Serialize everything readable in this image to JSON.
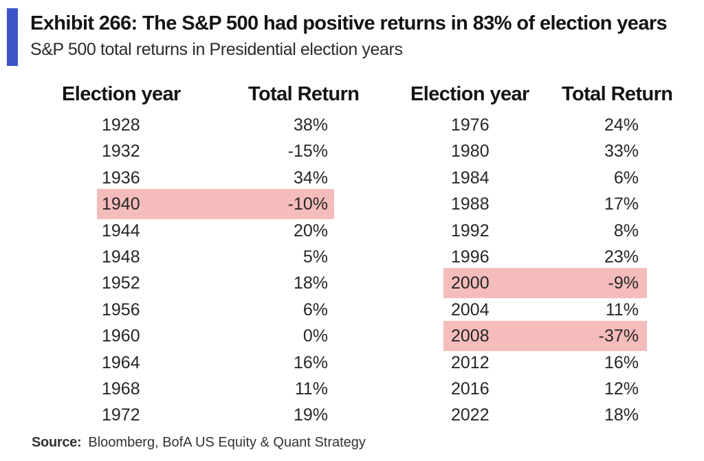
{
  "title": "Exhibit 266: The S&P 500 had positive returns in 83% of election years",
  "subtitle": "S&P 500 total returns in Presidential election years",
  "colors": {
    "accent": "#3b55c9",
    "highlight": "#f5bcbc"
  },
  "chart_data": {
    "type": "table",
    "columns": [
      "Election year",
      "Total Return",
      "Election year",
      "Total Return"
    ],
    "left_table": [
      {
        "year": "1928",
        "return": "38%",
        "highlighted": false
      },
      {
        "year": "1932",
        "return": "-15%",
        "highlighted": false
      },
      {
        "year": "1936",
        "return": "34%",
        "highlighted": false
      },
      {
        "year": "1940",
        "return": "-10%",
        "highlighted": true
      },
      {
        "year": "1944",
        "return": "20%",
        "highlighted": false
      },
      {
        "year": "1948",
        "return": "5%",
        "highlighted": false
      },
      {
        "year": "1952",
        "return": "18%",
        "highlighted": false
      },
      {
        "year": "1956",
        "return": "6%",
        "highlighted": false
      },
      {
        "year": "1960",
        "return": "0%",
        "highlighted": false
      },
      {
        "year": "1964",
        "return": "16%",
        "highlighted": false
      },
      {
        "year": "1968",
        "return": "11%",
        "highlighted": false
      },
      {
        "year": "1972",
        "return": "19%",
        "highlighted": false
      }
    ],
    "right_table": [
      {
        "year": "1976",
        "return": "24%",
        "highlighted": false
      },
      {
        "year": "1980",
        "return": "33%",
        "highlighted": false
      },
      {
        "year": "1984",
        "return": "6%",
        "highlighted": false
      },
      {
        "year": "1988",
        "return": "17%",
        "highlighted": false
      },
      {
        "year": "1992",
        "return": "8%",
        "highlighted": false
      },
      {
        "year": "1996",
        "return": "23%",
        "highlighted": false
      },
      {
        "year": "2000",
        "return": "-9%",
        "highlighted": true
      },
      {
        "year": "2004",
        "return": "11%",
        "highlighted": false
      },
      {
        "year": "2008",
        "return": "-37%",
        "highlighted": true
      },
      {
        "year": "2012",
        "return": "16%",
        "highlighted": false
      },
      {
        "year": "2016",
        "return": "12%",
        "highlighted": false
      },
      {
        "year": "2022",
        "return": "18%",
        "highlighted": false
      }
    ]
  },
  "source": {
    "label": "Source:",
    "text": "Bloomberg, BofA US Equity & Quant Strategy"
  }
}
